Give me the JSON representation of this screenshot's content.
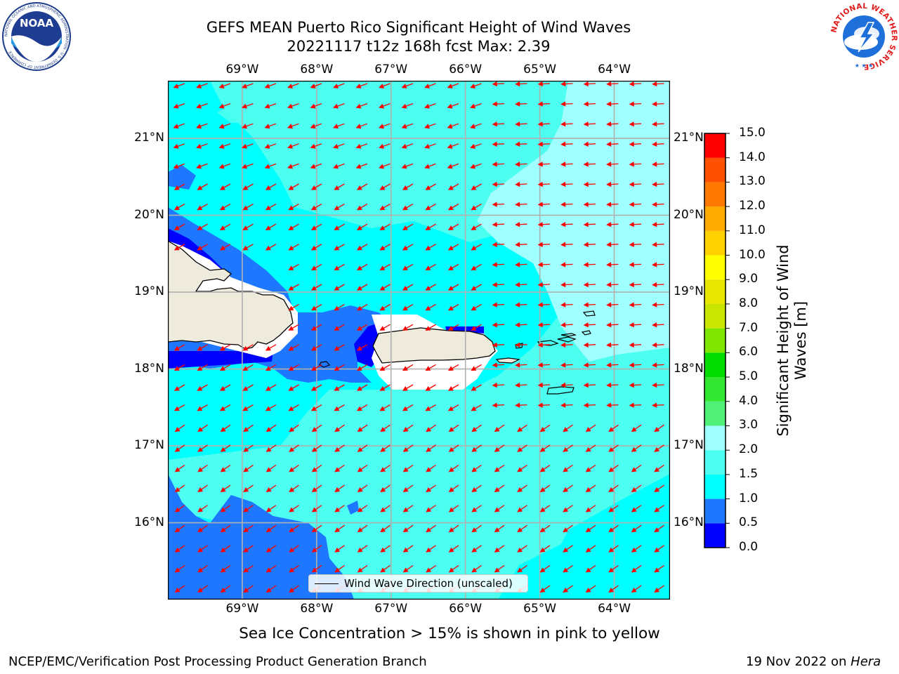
{
  "header": {
    "title_line1": "GEFS MEAN Puerto Rico Significant Height of Wind Waves",
    "title_line2": "20221117 t12z 168h fcst   Max: 2.39"
  },
  "logos": {
    "left": {
      "name": "noaa-logo",
      "text": "NOAA",
      "ring_text": "NATIONAL OCEANIC AND ATMOSPHERIC ADMINISTRATION · U.S. DEPARTMENT OF COMMERCE"
    },
    "right": {
      "name": "nws-logo",
      "ring_text": "NATIONAL WEATHER SERVICE"
    }
  },
  "map": {
    "lon_ticks": [
      "69°W",
      "68°W",
      "67°W",
      "66°W",
      "65°W",
      "64°W"
    ],
    "lat_ticks": [
      "21°N",
      "20°N",
      "19°N",
      "18°N",
      "17°N",
      "16°N"
    ],
    "lon_values": [
      -69,
      -68,
      -67,
      -66,
      -65,
      -64
    ],
    "lat_values": [
      21,
      20,
      19,
      18,
      17,
      16
    ],
    "extent": {
      "lon_min": -70.0,
      "lon_max": -63.25,
      "lat_min": 15.0,
      "lat_max": 21.75
    },
    "wind_wave_direction": "toward west-southwest",
    "arrow_color": "#ff0000",
    "land_color": "#efebdc",
    "legend_label": "Wind Wave Direction (unscaled)"
  },
  "colorbar": {
    "label": "Significant Height of Wind Waves [m]",
    "ticks": [
      "0.0",
      "0.5",
      "1.0",
      "1.5",
      "2.0",
      "3.0",
      "4.0",
      "5.0",
      "6.0",
      "7.0",
      "8.0",
      "9.0",
      "10.0",
      "11.0",
      "12.0",
      "13.0",
      "14.0",
      "15.0"
    ],
    "colors": [
      "#0000ff",
      "#1e78ff",
      "#00ffff",
      "#4cfff0",
      "#a0ffff",
      "#50f078",
      "#32e632",
      "#00dc00",
      "#80e600",
      "#c8e600",
      "#e6e600",
      "#ffff00",
      "#ffd200",
      "#ffaa00",
      "#ff7800",
      "#ff5000",
      "#ff2800",
      "#ff0000"
    ]
  },
  "footer": {
    "caption": "Sea Ice Concentration > 15% is shown in pink to yellow",
    "left": "NCEP/EMC/Verification Post Processing Product Generation Branch",
    "right_prefix": "19 Nov 2022 on ",
    "right_host": "Hera"
  }
}
